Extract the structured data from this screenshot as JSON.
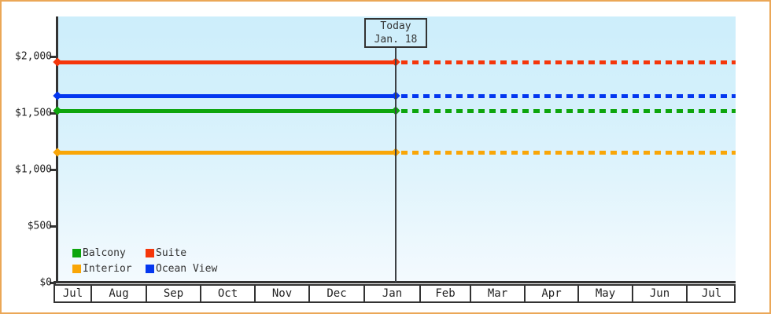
{
  "window": {
    "frame_border_color": "#eba757",
    "background_color": "#ffffff"
  },
  "plot": {
    "bg_gradient_top": "#cdeefb",
    "bg_gradient_bottom": "#f4fafe",
    "axis_color": "#333333"
  },
  "today_box": {
    "line1": "Today",
    "line2": "Jan. 18"
  },
  "legend": {
    "items": [
      "Balcony",
      "Suite",
      "Interior",
      "Ocean View"
    ]
  },
  "chart_data": {
    "type": "line",
    "title": "",
    "description": "Cabin price chart: flat price line per category, solid history left of today marker (Jan. 18), dashed projection to the right",
    "x_axis_months": [
      "Jul",
      "Aug",
      "Sep",
      "Oct",
      "Nov",
      "Dec",
      "Jan",
      "Feb",
      "Mar",
      "Apr",
      "May",
      "Jun",
      "Jul"
    ],
    "y_ticks": [
      {
        "label": "$2,000",
        "value": 2000
      },
      {
        "label": "$1,500",
        "value": 1500
      },
      {
        "label": "$1,000",
        "value": 1000
      },
      {
        "label": "$500",
        "value": 500
      },
      {
        "label": "$0",
        "value": 0
      }
    ],
    "ylim": [
      0,
      2000
    ],
    "grid": false,
    "legend_position": "bottom-left-inside-plot",
    "today": {
      "label": "Today",
      "date": "Jan. 18",
      "month_index": 6,
      "day": 18
    },
    "line_style": {
      "before_today": "solid",
      "after_today": "dashed",
      "marker": "diamond"
    },
    "series": [
      {
        "name": "Suite",
        "color": "#f5360a",
        "price": 1950
      },
      {
        "name": "Ocean View",
        "color": "#0437f0",
        "price": 1650
      },
      {
        "name": "Balcony",
        "color": "#0da50d",
        "price": 1520
      },
      {
        "name": "Interior",
        "color": "#f9a607",
        "price": 1150
      }
    ]
  }
}
